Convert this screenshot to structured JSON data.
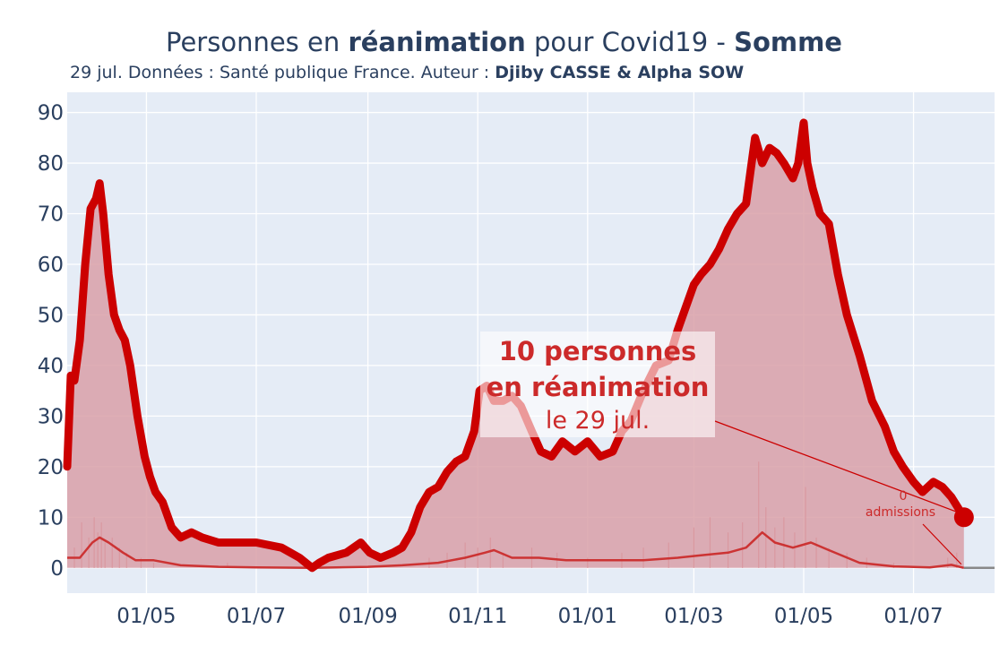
{
  "title": {
    "part1": "Personnes en ",
    "bold1": "réanimation",
    "part2": " pour Covid19 - ",
    "bold2": "Somme"
  },
  "subtitle": {
    "text": "29 jul. Données : Santé publique France. Auteur : ",
    "author": "Djiby CASSE & Alpha SOW"
  },
  "colors": {
    "line": "#cc0000",
    "fill": "#d9a0a8",
    "plot_bg": "#e5ecf6",
    "grid": "#ffffff",
    "small_line": "#cc3333",
    "zero_line": "#888888"
  },
  "annotation": {
    "line1": "10 personnes",
    "line2": "en réanimation",
    "line3": "le 29 jul.",
    "secondary_line1": "0",
    "secondary_line2": "admissions"
  },
  "chart_data": {
    "type": "area",
    "x_unit": "date",
    "x_tick_labels": [
      "01/05",
      "01/07",
      "01/09",
      "01/11",
      "01/01",
      "01/03",
      "01/05",
      "01/07"
    ],
    "x_tick_dates": [
      "2020-05-01",
      "2020-07-01",
      "2020-09-01",
      "2020-11-01",
      "2021-01-01",
      "2021-03-01",
      "2021-05-01",
      "2021-07-01"
    ],
    "xlim": [
      "2020-03-18",
      "2021-08-15"
    ],
    "ylim": [
      -5,
      94
    ],
    "y_ticks": [
      0,
      10,
      20,
      30,
      40,
      50,
      60,
      70,
      80,
      90
    ],
    "grid": true,
    "series": [
      {
        "role": "reanimation",
        "x": [
          "2020-03-18",
          "2020-03-20",
          "2020-03-22",
          "2020-03-25",
          "2020-03-28",
          "2020-03-31",
          "2020-04-03",
          "2020-04-05",
          "2020-04-07",
          "2020-04-10",
          "2020-04-13",
          "2020-04-16",
          "2020-04-19",
          "2020-04-22",
          "2020-04-26",
          "2020-04-30",
          "2020-05-03",
          "2020-05-06",
          "2020-05-10",
          "2020-05-15",
          "2020-05-20",
          "2020-05-26",
          "2020-06-01",
          "2020-06-10",
          "2020-06-20",
          "2020-07-01",
          "2020-07-15",
          "2020-07-25",
          "2020-08-01",
          "2020-08-05",
          "2020-08-10",
          "2020-08-20",
          "2020-08-28",
          "2020-09-02",
          "2020-09-08",
          "2020-09-15",
          "2020-09-20",
          "2020-09-25",
          "2020-09-30",
          "2020-10-05",
          "2020-10-10",
          "2020-10-15",
          "2020-10-20",
          "2020-10-25",
          "2020-10-30",
          "2020-11-02",
          "2020-11-06",
          "2020-11-10",
          "2020-11-15",
          "2020-11-20",
          "2020-11-25",
          "2020-12-01",
          "2020-12-06",
          "2020-12-12",
          "2020-12-18",
          "2020-12-25",
          "2021-01-01",
          "2021-01-08",
          "2021-01-15",
          "2021-01-20",
          "2021-01-25",
          "2021-02-01",
          "2021-02-08",
          "2021-02-15",
          "2021-02-20",
          "2021-02-25",
          "2021-03-01",
          "2021-03-05",
          "2021-03-10",
          "2021-03-15",
          "2021-03-20",
          "2021-03-25",
          "2021-03-30",
          "2021-04-04",
          "2021-04-08",
          "2021-04-12",
          "2021-04-16",
          "2021-04-20",
          "2021-04-25",
          "2021-04-28",
          "2021-05-01",
          "2021-05-03",
          "2021-05-06",
          "2021-05-10",
          "2021-05-15",
          "2021-05-20",
          "2021-05-25",
          "2021-06-01",
          "2021-06-08",
          "2021-06-15",
          "2021-06-20",
          "2021-06-25",
          "2021-07-01",
          "2021-07-06",
          "2021-07-12",
          "2021-07-17",
          "2021-07-22",
          "2021-07-29"
        ],
        "y": [
          20,
          38,
          37,
          45,
          60,
          71,
          73,
          76,
          70,
          58,
          50,
          47,
          45,
          40,
          30,
          22,
          18,
          15,
          13,
          8,
          6,
          7,
          6,
          5,
          5,
          5,
          4,
          2,
          0,
          1,
          2,
          3,
          5,
          3,
          2,
          3,
          4,
          7,
          12,
          15,
          16,
          19,
          21,
          22,
          27,
          35,
          36,
          33,
          33,
          34,
          32,
          27,
          23,
          22,
          25,
          23,
          25,
          22,
          23,
          27,
          29,
          35,
          40,
          41,
          47,
          52,
          56,
          58,
          60,
          63,
          67,
          70,
          72,
          85,
          80,
          83,
          82,
          80,
          77,
          80,
          88,
          80,
          75,
          70,
          68,
          58,
          50,
          42,
          33,
          28,
          23,
          20,
          17,
          15,
          17,
          16,
          14,
          10
        ]
      },
      {
        "role": "admissions_moyenne",
        "x": [
          "2020-03-18",
          "2020-03-25",
          "2020-04-01",
          "2020-04-05",
          "2020-04-10",
          "2020-04-18",
          "2020-04-25",
          "2020-05-05",
          "2020-05-20",
          "2020-06-10",
          "2020-07-01",
          "2020-08-01",
          "2020-09-01",
          "2020-09-20",
          "2020-10-10",
          "2020-10-25",
          "2020-11-05",
          "2020-11-10",
          "2020-11-20",
          "2020-12-05",
          "2020-12-20",
          "2021-01-10",
          "2021-02-01",
          "2021-02-20",
          "2021-03-05",
          "2021-03-20",
          "2021-03-30",
          "2021-04-08",
          "2021-04-15",
          "2021-04-25",
          "2021-05-05",
          "2021-05-15",
          "2021-06-01",
          "2021-06-20",
          "2021-07-10",
          "2021-07-22",
          "2021-07-29"
        ],
        "y": [
          2,
          2,
          5,
          6,
          5,
          3,
          1.5,
          1.5,
          0.5,
          0.2,
          0.1,
          0,
          0.2,
          0.5,
          1,
          2,
          3,
          3.5,
          2,
          2,
          1.5,
          1.5,
          1.5,
          2,
          2.5,
          3,
          4,
          7,
          5,
          4,
          5,
          3.5,
          1,
          0.3,
          0.1,
          0.6,
          0
        ]
      }
    ],
    "daily_bars": [
      [
        "2020-03-22",
        4
      ],
      [
        "2020-03-26",
        9
      ],
      [
        "2020-03-30",
        6
      ],
      [
        "2020-04-02",
        10
      ],
      [
        "2020-04-04",
        7
      ],
      [
        "2020-04-06",
        9
      ],
      [
        "2020-04-08",
        5
      ],
      [
        "2020-04-12",
        6
      ],
      [
        "2020-04-16",
        4
      ],
      [
        "2020-04-20",
        3
      ],
      [
        "2020-04-28",
        2
      ],
      [
        "2020-05-05",
        1
      ],
      [
        "2020-06-15",
        1
      ],
      [
        "2020-10-05",
        2
      ],
      [
        "2020-10-15",
        3
      ],
      [
        "2020-10-25",
        5
      ],
      [
        "2020-11-01",
        4
      ],
      [
        "2020-11-08",
        6
      ],
      [
        "2020-11-15",
        3
      ],
      [
        "2020-12-01",
        4
      ],
      [
        "2020-12-15",
        3
      ],
      [
        "2021-01-01",
        2
      ],
      [
        "2021-01-20",
        3
      ],
      [
        "2021-02-01",
        4
      ],
      [
        "2021-02-15",
        5
      ],
      [
        "2021-03-01",
        8
      ],
      [
        "2021-03-10",
        10
      ],
      [
        "2021-03-20",
        7
      ],
      [
        "2021-03-28",
        9
      ],
      [
        "2021-04-06",
        21
      ],
      [
        "2021-04-10",
        12
      ],
      [
        "2021-04-15",
        8
      ],
      [
        "2021-04-20",
        10
      ],
      [
        "2021-04-26",
        7
      ],
      [
        "2021-05-02",
        16
      ],
      [
        "2021-05-08",
        6
      ],
      [
        "2021-05-15",
        4
      ],
      [
        "2021-05-25",
        3
      ],
      [
        "2021-06-05",
        2
      ],
      [
        "2021-06-20",
        1
      ],
      [
        "2021-07-20",
        2
      ],
      [
        "2021-07-25",
        3
      ]
    ],
    "last_point": {
      "x": "2021-07-29",
      "y": 10
    }
  }
}
